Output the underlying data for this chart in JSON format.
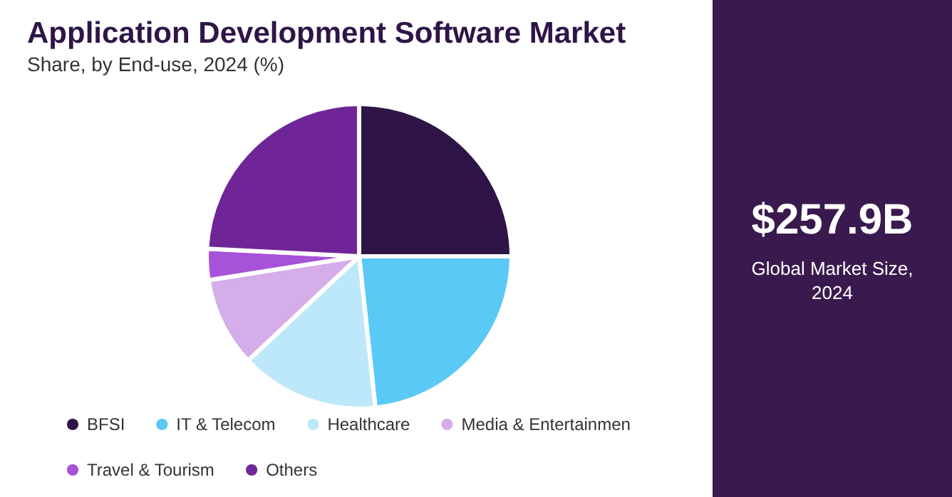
{
  "chart_data": {
    "type": "pie",
    "title": "Application Development Software Market",
    "subtitle": "Share, by End-use, 2024 (%)",
    "categories": [
      "BFSI",
      "IT & Telecom",
      "Healthcare",
      "Media & Entertainmen",
      "Travel & Tourism",
      "Others"
    ],
    "values": [
      25,
      23.3,
      14.7,
      9.5,
      3.3,
      24.2
    ],
    "colors": [
      "#2f1547",
      "#5bc9f6",
      "#bde8f9",
      "#d5ade9",
      "#a652d9",
      "#6f2598"
    ],
    "legend": "bottom",
    "annotations": [
      "$257.9B",
      "Global Market Size, 2024"
    ]
  }
}
